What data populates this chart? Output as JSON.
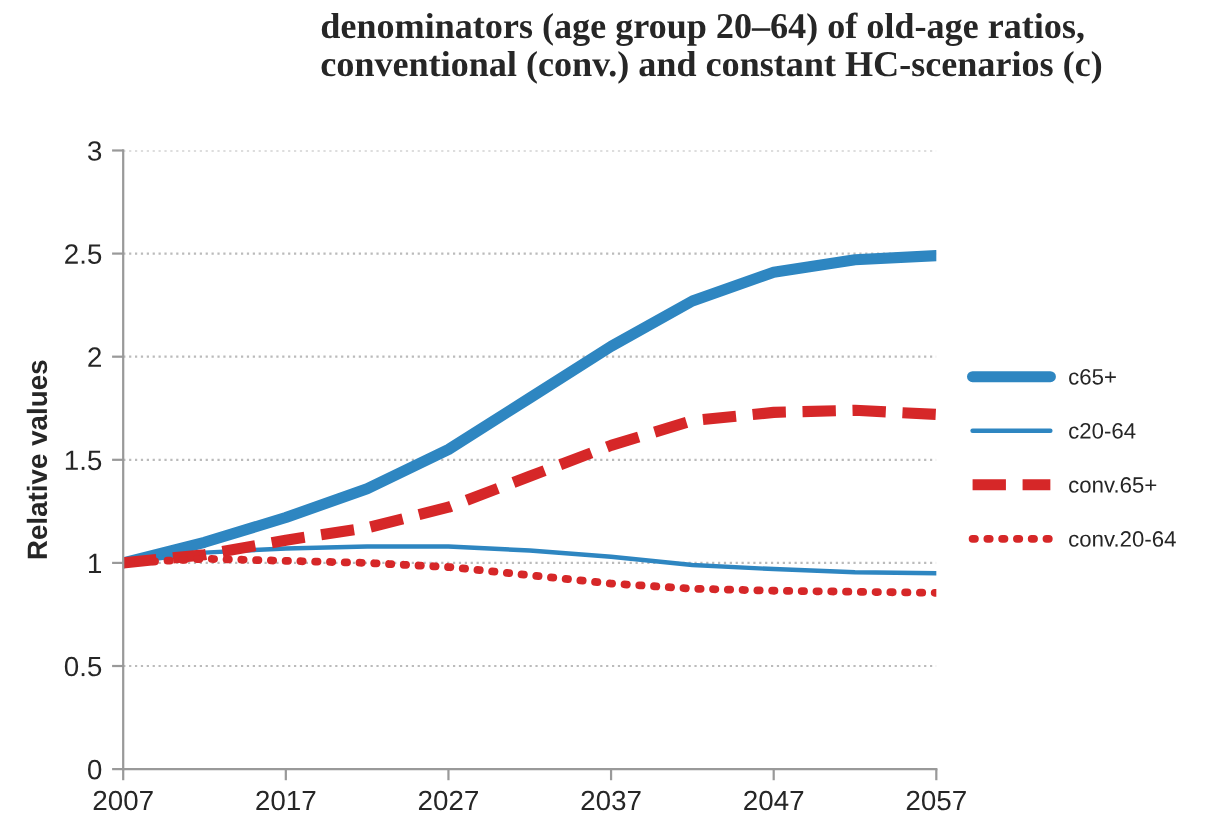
{
  "chart_data": {
    "type": "line",
    "title": "denominators (age group 20–64) of old-age ratios, conventional (conv.) and constant HC-scenarios (c)",
    "ylabel": "Relative values",
    "x": [
      2007,
      2012,
      2017,
      2022,
      2027,
      2032,
      2037,
      2042,
      2047,
      2052,
      2057
    ],
    "series": [
      {
        "name": "c65+",
        "color": "#2e86c1",
        "line_style": "solid",
        "values": [
          1.0,
          1.1,
          1.22,
          1.36,
          1.55,
          1.8,
          2.05,
          2.27,
          2.41,
          2.47,
          2.49
        ]
      },
      {
        "name": "c20-64",
        "color": "#2e86c1",
        "line_style": "solid",
        "values": [
          1.0,
          1.05,
          1.07,
          1.08,
          1.08,
          1.06,
          1.03,
          0.99,
          0.97,
          0.955,
          0.95
        ]
      },
      {
        "name": "conv.65+",
        "color": "#d62728",
        "line_style": "dashed",
        "values": [
          1.0,
          1.04,
          1.11,
          1.17,
          1.27,
          1.42,
          1.57,
          1.69,
          1.73,
          1.74,
          1.72
        ]
      },
      {
        "name": "conv.20-64",
        "color": "#d62728",
        "line_style": "dotted",
        "values": [
          1.0,
          1.02,
          1.01,
          1.0,
          0.98,
          0.94,
          0.9,
          0.875,
          0.865,
          0.86,
          0.855
        ]
      }
    ],
    "xlim": [
      2007,
      2057
    ],
    "xticks": [
      2007,
      2017,
      2027,
      2037,
      2047,
      2057
    ],
    "ylim": [
      0,
      3
    ],
    "yticks": [
      0,
      0.5,
      1,
      1.5,
      2,
      2.5,
      3
    ],
    "grid": "y",
    "legend": "right",
    "marker": "none"
  }
}
